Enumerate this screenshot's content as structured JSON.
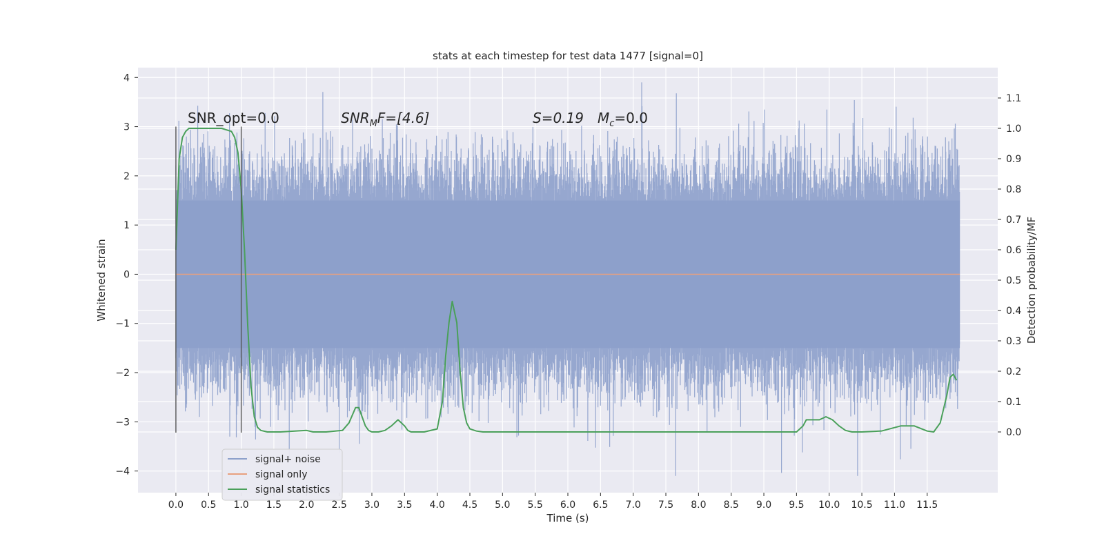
{
  "chart_data": {
    "type": "line",
    "title": "stats at each timestep for test data 1477 [signal=0]",
    "xlabel": "Time (s)",
    "ylabel_left": "Whitened strain",
    "ylabel_right": "Detection probability/MF",
    "xlim": [
      -0.58,
      12.58
    ],
    "ylim_left": [
      -4.44,
      4.2
    ],
    "ylim_right": [
      -0.2,
      1.2
    ],
    "x_ticks": [
      "0.0",
      "0.5",
      "1.0",
      "1.5",
      "2.0",
      "2.5",
      "3.0",
      "3.5",
      "4.0",
      "4.5",
      "5.0",
      "5.5",
      "6.0",
      "6.5",
      "7.0",
      "7.5",
      "8.0",
      "8.5",
      "9.0",
      "9.5",
      "10.0",
      "10.5",
      "11.0",
      "11.5"
    ],
    "y_ticks_left": [
      "−4",
      "−3",
      "−2",
      "−1",
      "0",
      "1",
      "2",
      "3",
      "4"
    ],
    "y_ticks_right": [
      "0.0",
      "0.1",
      "0.2",
      "0.3",
      "0.4",
      "0.5",
      "0.6",
      "0.7",
      "0.8",
      "0.9",
      "1.0",
      "1.1"
    ],
    "grid": true,
    "legend_position": "lower-left",
    "annotations": {
      "snr_opt": "SNR_opt=0.0",
      "snr_mf_base": "SNR",
      "snr_mf_sub": "M",
      "snr_mf_rest": "F=[4.6]",
      "s_stat": "S=0.19",
      "mc_base": "M",
      "mc_sub": "c",
      "mc_rest": "=0.0"
    },
    "vertical_markers": [
      {
        "x": 0.0,
        "y_range": [
          -3.22,
          3.0
        ]
      },
      {
        "x": 1.0,
        "y_range": [
          -3.22,
          3.0
        ]
      }
    ],
    "series": [
      {
        "name": "signal+ noise",
        "color": "#8da0cb",
        "axis": "left",
        "style": "noise-band",
        "x_range": [
          0.0,
          12.0
        ],
        "typical_range": [
          -1.5,
          1.5
        ],
        "extreme_range": [
          -4.1,
          3.9
        ]
      },
      {
        "name": "signal only",
        "color": "#e8a07e",
        "axis": "left",
        "x": [
          0.0,
          12.0
        ],
        "values": [
          0.0,
          0.0
        ]
      },
      {
        "name": "signal statistics",
        "color": "#4aa05a",
        "axis": "right",
        "x": [
          0.0,
          0.05,
          0.1,
          0.15,
          0.2,
          0.3,
          0.5,
          0.7,
          0.85,
          0.9,
          0.95,
          1.0,
          1.05,
          1.1,
          1.15,
          1.2,
          1.25,
          1.3,
          1.4,
          1.6,
          2.0,
          2.1,
          2.3,
          2.55,
          2.65,
          2.75,
          2.8,
          2.85,
          2.9,
          2.95,
          3.0,
          3.1,
          3.2,
          3.3,
          3.4,
          3.5,
          3.55,
          3.6,
          3.7,
          3.8,
          4.0,
          4.08,
          4.13,
          4.18,
          4.23,
          4.3,
          4.35,
          4.4,
          4.45,
          4.5,
          4.6,
          4.7,
          4.8,
          5.0,
          5.5,
          6.0,
          7.0,
          8.0,
          9.0,
          9.5,
          9.6,
          9.65,
          9.75,
          9.85,
          9.95,
          10.05,
          10.15,
          10.25,
          10.35,
          10.5,
          10.8,
          11.1,
          11.3,
          11.5,
          11.6,
          11.7,
          11.8,
          11.85,
          11.9,
          11.95
        ],
        "values": [
          0.6,
          0.9,
          0.97,
          0.99,
          1.0,
          1.0,
          1.0,
          1.0,
          0.99,
          0.97,
          0.92,
          0.8,
          0.6,
          0.35,
          0.15,
          0.05,
          0.015,
          0.005,
          0.0,
          0.0,
          0.005,
          0.0,
          0.0,
          0.005,
          0.03,
          0.08,
          0.08,
          0.05,
          0.02,
          0.005,
          0.0,
          0.0,
          0.005,
          0.02,
          0.04,
          0.02,
          0.005,
          0.0,
          0.0,
          0.0,
          0.01,
          0.1,
          0.25,
          0.36,
          0.43,
          0.36,
          0.2,
          0.08,
          0.03,
          0.01,
          0.003,
          0.0,
          0.0,
          0.0,
          0.0,
          0.0,
          0.0,
          0.0,
          0.0,
          0.0,
          0.02,
          0.04,
          0.04,
          0.04,
          0.05,
          0.04,
          0.02,
          0.005,
          0.0,
          0.0,
          0.003,
          0.02,
          0.02,
          0.003,
          0.0,
          0.03,
          0.12,
          0.18,
          0.19,
          0.17
        ]
      }
    ]
  }
}
